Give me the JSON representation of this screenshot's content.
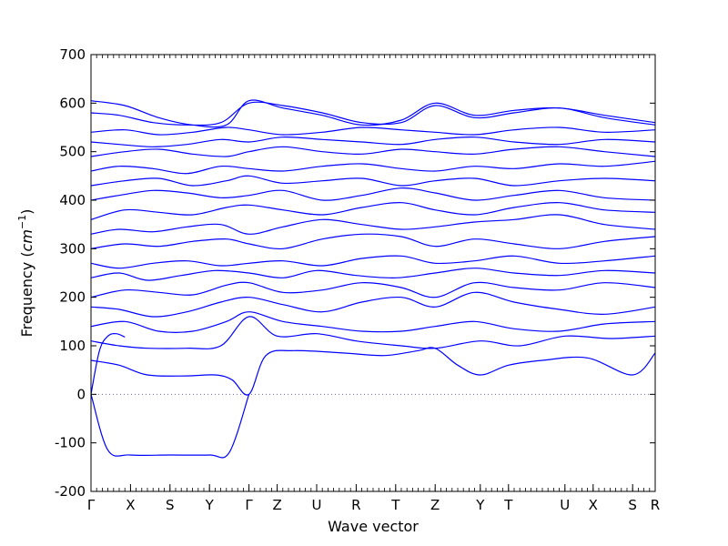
{
  "chart_data": {
    "type": "line",
    "title": "",
    "xlabel": "Wave vector",
    "ylabel_prefix": "Frequency (",
    "ylabel_unit": "cm",
    "ylabel_exp": "−1",
    "ylabel_suffix": ")",
    "ylim": [
      -200,
      700
    ],
    "yticks": [
      -200,
      -100,
      0,
      100,
      200,
      300,
      400,
      500,
      600,
      700
    ],
    "grid": false,
    "line_color": "#0000ff",
    "zero_line_color": "#6060d0",
    "high_symmetry_points": [
      {
        "label": "Γ",
        "k": 0.0
      },
      {
        "label": "X",
        "k": 0.07
      },
      {
        "label": "S",
        "k": 0.14
      },
      {
        "label": "Y",
        "k": 0.21
      },
      {
        "label": "Γ",
        "k": 0.28
      },
      {
        "label": "Z",
        "k": 0.33
      },
      {
        "label": "U",
        "k": 0.4
      },
      {
        "label": "R",
        "k": 0.47
      },
      {
        "label": "T",
        "k": 0.54
      },
      {
        "label": "Z",
        "k": 0.61
      },
      {
        "label": "Y",
        "k": 0.69
      },
      {
        "label": "T",
        "k": 0.74
      },
      {
        "label": "U",
        "k": 0.84
      },
      {
        "label": "X",
        "k": 0.89
      },
      {
        "label": "S",
        "k": 0.96
      },
      {
        "label": "R",
        "k": 1.0
      }
    ],
    "series": [
      {
        "k": [
          0,
          0.03,
          0.07,
          0.14,
          0.21,
          0.245,
          0.28
        ],
        "values": [
          0,
          -115,
          -125,
          -125,
          -125,
          -120,
          0
        ]
      },
      {
        "k": [
          0,
          0.015,
          0.03,
          0.045,
          0.06
        ],
        "values": [
          0,
          90,
          120,
          125,
          118
        ]
      },
      {
        "k": [
          0,
          0.05,
          0.1,
          0.17,
          0.22,
          0.25,
          0.28,
          0.31,
          0.36,
          0.45,
          0.52,
          0.58,
          0.61,
          0.65,
          0.69,
          0.74,
          0.8,
          0.88,
          0.96,
          1
        ],
        "values": [
          70,
          60,
          40,
          38,
          40,
          30,
          0,
          80,
          90,
          85,
          80,
          90,
          95,
          60,
          40,
          60,
          70,
          75,
          40,
          85
        ]
      },
      {
        "k": [
          0,
          0.05,
          0.1,
          0.17,
          0.23,
          0.28,
          0.33,
          0.4,
          0.47,
          0.55,
          0.61,
          0.69,
          0.76,
          0.84,
          0.92,
          1
        ],
        "values": [
          110,
          100,
          95,
          95,
          100,
          160,
          120,
          125,
          110,
          100,
          95,
          110,
          100,
          120,
          115,
          120
        ]
      },
      {
        "k": [
          0,
          0.06,
          0.12,
          0.18,
          0.24,
          0.28,
          0.34,
          0.41,
          0.48,
          0.55,
          0.61,
          0.68,
          0.75,
          0.83,
          0.91,
          1
        ],
        "values": [
          140,
          150,
          130,
          130,
          150,
          170,
          150,
          140,
          130,
          130,
          140,
          150,
          135,
          130,
          145,
          150
        ]
      },
      {
        "k": [
          0,
          0.05,
          0.11,
          0.17,
          0.23,
          0.28,
          0.34,
          0.41,
          0.48,
          0.55,
          0.61,
          0.68,
          0.75,
          0.83,
          0.91,
          1
        ],
        "values": [
          180,
          175,
          160,
          170,
          190,
          200,
          185,
          170,
          190,
          200,
          180,
          210,
          190,
          175,
          165,
          180
        ]
      },
      {
        "k": [
          0,
          0.06,
          0.12,
          0.18,
          0.24,
          0.28,
          0.34,
          0.41,
          0.48,
          0.55,
          0.61,
          0.68,
          0.75,
          0.83,
          0.91,
          1
        ],
        "values": [
          200,
          215,
          210,
          205,
          225,
          230,
          210,
          215,
          230,
          220,
          200,
          230,
          220,
          215,
          230,
          220
        ]
      },
      {
        "k": [
          0,
          0.05,
          0.1,
          0.16,
          0.22,
          0.28,
          0.34,
          0.4,
          0.47,
          0.54,
          0.61,
          0.68,
          0.75,
          0.83,
          0.91,
          1
        ],
        "values": [
          240,
          250,
          235,
          245,
          255,
          250,
          240,
          255,
          245,
          240,
          250,
          260,
          250,
          245,
          255,
          250
        ]
      },
      {
        "k": [
          0,
          0.05,
          0.11,
          0.17,
          0.23,
          0.28,
          0.34,
          0.41,
          0.48,
          0.55,
          0.61,
          0.68,
          0.75,
          0.83,
          0.91,
          1
        ],
        "values": [
          270,
          260,
          270,
          275,
          265,
          270,
          275,
          265,
          280,
          285,
          270,
          275,
          285,
          270,
          275,
          285
        ]
      },
      {
        "k": [
          0,
          0.06,
          0.12,
          0.18,
          0.24,
          0.28,
          0.34,
          0.41,
          0.48,
          0.55,
          0.61,
          0.68,
          0.75,
          0.83,
          0.91,
          1
        ],
        "values": [
          300,
          310,
          305,
          315,
          320,
          310,
          300,
          320,
          330,
          325,
          305,
          320,
          310,
          300,
          315,
          325
        ]
      },
      {
        "k": [
          0,
          0.05,
          0.11,
          0.17,
          0.23,
          0.28,
          0.34,
          0.41,
          0.48,
          0.55,
          0.61,
          0.68,
          0.75,
          0.83,
          0.91,
          1
        ],
        "values": [
          330,
          340,
          335,
          345,
          350,
          330,
          345,
          360,
          350,
          340,
          345,
          355,
          360,
          370,
          350,
          340
        ]
      },
      {
        "k": [
          0,
          0.06,
          0.12,
          0.18,
          0.24,
          0.28,
          0.34,
          0.41,
          0.48,
          0.55,
          0.61,
          0.68,
          0.75,
          0.83,
          0.91,
          1
        ],
        "values": [
          360,
          380,
          375,
          370,
          385,
          390,
          380,
          370,
          385,
          395,
          380,
          370,
          385,
          395,
          380,
          375
        ]
      },
      {
        "k": [
          0,
          0.05,
          0.11,
          0.17,
          0.23,
          0.28,
          0.34,
          0.41,
          0.48,
          0.55,
          0.61,
          0.68,
          0.75,
          0.83,
          0.91,
          1
        ],
        "values": [
          400,
          410,
          420,
          415,
          405,
          410,
          420,
          400,
          410,
          425,
          415,
          400,
          410,
          420,
          405,
          400
        ]
      },
      {
        "k": [
          0,
          0.06,
          0.12,
          0.18,
          0.24,
          0.28,
          0.34,
          0.41,
          0.48,
          0.55,
          0.61,
          0.68,
          0.75,
          0.83,
          0.91,
          1
        ],
        "values": [
          430,
          440,
          445,
          430,
          440,
          450,
          435,
          440,
          445,
          430,
          440,
          445,
          430,
          440,
          445,
          440
        ]
      },
      {
        "k": [
          0,
          0.05,
          0.11,
          0.17,
          0.23,
          0.28,
          0.34,
          0.41,
          0.48,
          0.55,
          0.61,
          0.68,
          0.75,
          0.83,
          0.91,
          1
        ],
        "values": [
          460,
          470,
          465,
          455,
          470,
          465,
          460,
          470,
          475,
          465,
          460,
          470,
          465,
          475,
          470,
          480
        ]
      },
      {
        "k": [
          0,
          0.06,
          0.12,
          0.18,
          0.24,
          0.28,
          0.34,
          0.41,
          0.48,
          0.55,
          0.61,
          0.68,
          0.75,
          0.83,
          0.91,
          1
        ],
        "values": [
          490,
          500,
          505,
          495,
          490,
          500,
          510,
          500,
          495,
          505,
          500,
          495,
          505,
          510,
          500,
          490
        ]
      },
      {
        "k": [
          0,
          0.05,
          0.11,
          0.17,
          0.23,
          0.28,
          0.34,
          0.41,
          0.48,
          0.55,
          0.61,
          0.68,
          0.75,
          0.83,
          0.91,
          1
        ],
        "values": [
          520,
          515,
          510,
          515,
          525,
          520,
          530,
          525,
          520,
          515,
          525,
          530,
          520,
          515,
          525,
          520
        ]
      },
      {
        "k": [
          0,
          0.06,
          0.12,
          0.18,
          0.24,
          0.28,
          0.34,
          0.41,
          0.48,
          0.55,
          0.61,
          0.68,
          0.75,
          0.83,
          0.91,
          1
        ],
        "values": [
          540,
          545,
          535,
          540,
          550,
          545,
          535,
          540,
          550,
          545,
          540,
          535,
          545,
          550,
          540,
          545
        ]
      },
      {
        "k": [
          0,
          0.05,
          0.11,
          0.17,
          0.23,
          0.28,
          0.34,
          0.41,
          0.48,
          0.55,
          0.61,
          0.68,
          0.75,
          0.83,
          0.91,
          1
        ],
        "values": [
          580,
          575,
          560,
          555,
          560,
          600,
          595,
          580,
          560,
          560,
          595,
          570,
          580,
          590,
          570,
          555
        ]
      },
      {
        "k": [
          0,
          0.06,
          0.12,
          0.18,
          0.24,
          0.28,
          0.34,
          0.41,
          0.48,
          0.55,
          0.61,
          0.68,
          0.75,
          0.83,
          0.91,
          1
        ],
        "values": [
          605,
          595,
          570,
          555,
          555,
          605,
          590,
          575,
          555,
          565,
          600,
          575,
          585,
          590,
          575,
          560
        ]
      }
    ]
  }
}
